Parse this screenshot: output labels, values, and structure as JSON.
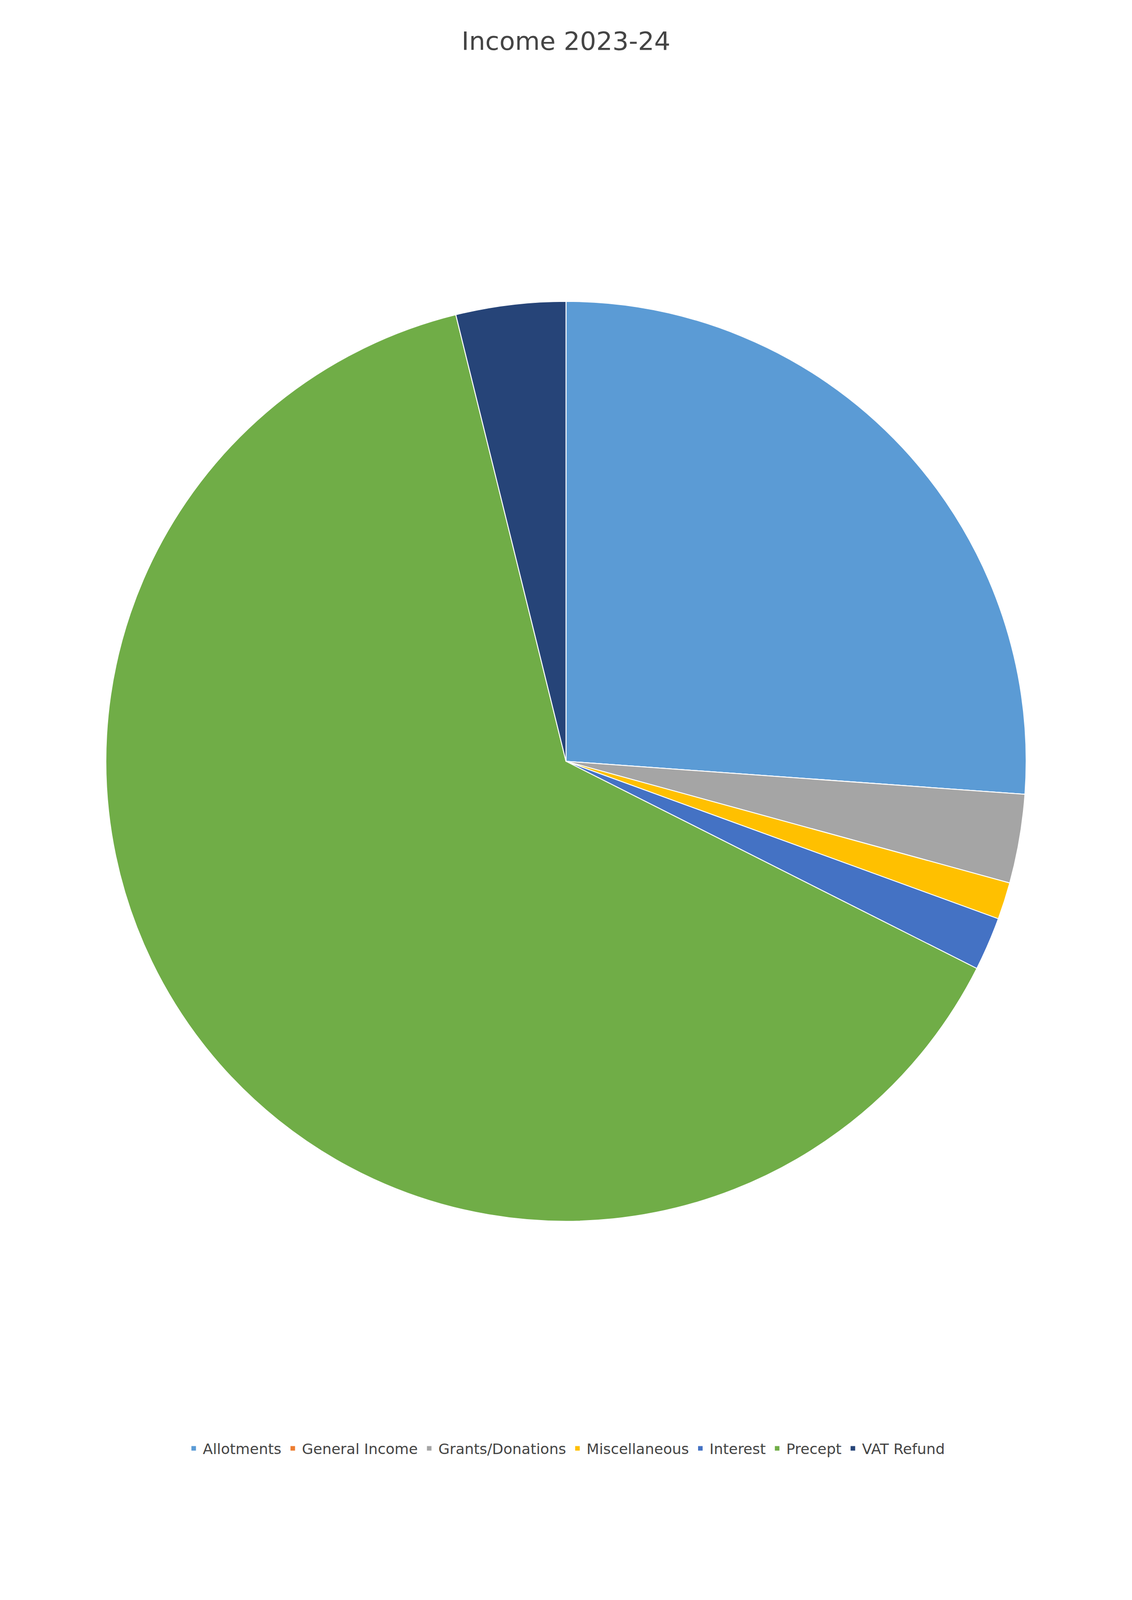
{
  "chart_data": {
    "type": "pie",
    "title": "Income 2023-24",
    "categories": [
      "Allotments",
      "General Income",
      "Grants/Donations",
      "Miscellaneous",
      "Interest",
      "Precept",
      "VAT Refund"
    ],
    "values": [
      5031.47,
      0.01,
      600.0,
      250.0,
      361.04,
      12262.0,
      740.91
    ],
    "colors": [
      "#5B9BD5",
      "#ED7D31",
      "#A5A5A5",
      "#FFC000",
      "#4472C4",
      "#70AD47",
      "#264478"
    ],
    "legend": "bottom"
  }
}
